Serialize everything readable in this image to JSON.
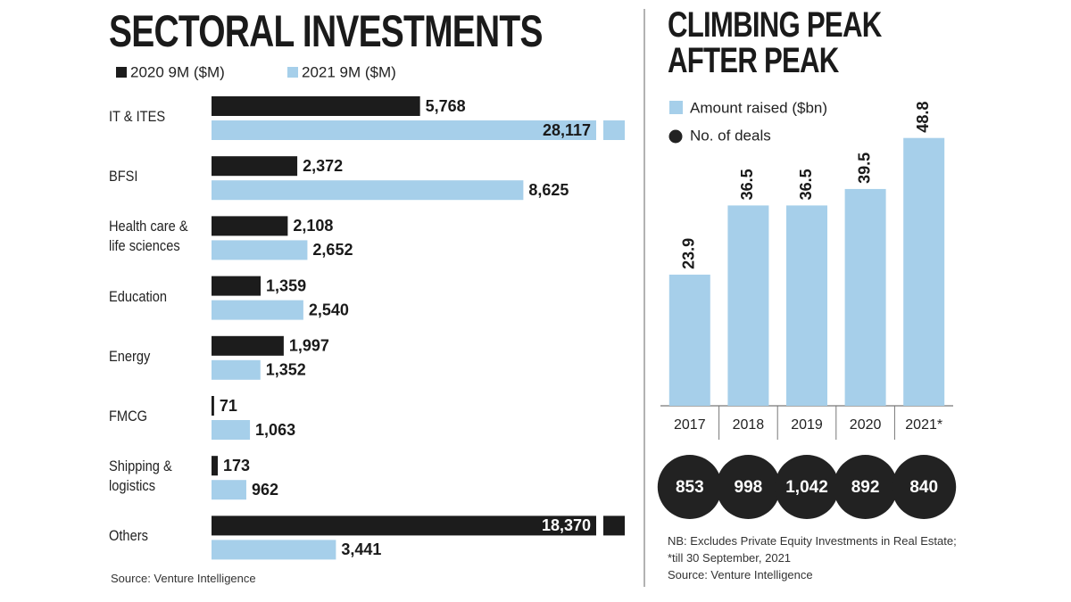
{
  "chart_data": [
    {
      "type": "hbar",
      "title": "SECTORAL INVESTMENTS",
      "categories": [
        "IT & ITES",
        "BFSI",
        "Health care & life sciences",
        "Education",
        "Energy",
        "FMCG",
        "Shipping & logistics",
        "Others"
      ],
      "series": [
        {
          "name": "2020 9M ($M)",
          "color": "#1c1c1c",
          "values": [
            5768,
            2372,
            2108,
            1359,
            1997,
            71,
            173,
            18370
          ],
          "value_labels": [
            "5,768",
            "2,372",
            "2,108",
            "1,359",
            "1,997",
            "71",
            "173",
            "18,370"
          ]
        },
        {
          "name": "2021 9M  ($M)",
          "color": "#a6cfea",
          "values": [
            28117,
            8625,
            2652,
            2540,
            1352,
            1063,
            962,
            3441
          ],
          "value_labels": [
            "28,117",
            "8,625",
            "2,652",
            "2,540",
            "1,352",
            "1,063",
            "962",
            "3,441"
          ]
        }
      ],
      "xlim": [
        0,
        11430
      ],
      "source": "Source: Venture Intelligence"
    },
    {
      "type": "bar",
      "title": "CLIMBING PEAK AFTER PEAK",
      "categories": [
        "2017",
        "2018",
        "2019",
        "2020",
        "2021*"
      ],
      "series": [
        {
          "name": "Amount raised ($bn)",
          "color": "#a6cfea",
          "values": [
            23.9,
            36.5,
            36.5,
            39.5,
            48.8
          ]
        },
        {
          "name": "No. of deals",
          "color": "#222222",
          "values": [
            853,
            998,
            1042,
            892,
            840
          ],
          "value_labels": [
            "853",
            "998",
            "1,042",
            "892",
            "840"
          ]
        }
      ],
      "ylim": [
        0,
        52
      ],
      "note": "NB: Excludes Private Equity Investments in Real Estate; *till 30 September, 2021",
      "source": "Source: Venture Intelligence"
    }
  ]
}
